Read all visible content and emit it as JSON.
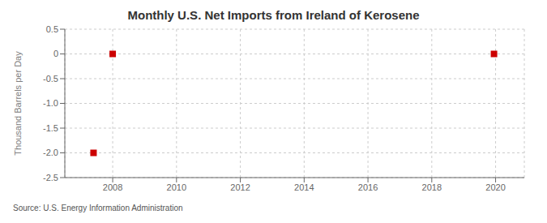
{
  "chart_data": {
    "type": "scatter",
    "title": "Monthly U.S. Net Imports from Ireland of Kerosene",
    "ylabel": "Thousand Barrels per Day",
    "source": "Source: U.S. Energy Information Administration",
    "x": [
      2007.4,
      2008.0,
      2019.95
    ],
    "values": [
      -2.0,
      0.0,
      0.0
    ],
    "color": "#CC0000",
    "marker": "square",
    "xlim": [
      2006.5,
      2020.9
    ],
    "xticks": [
      2008,
      2010,
      2012,
      2014,
      2016,
      2018,
      2020
    ],
    "ylim": [
      -2.5,
      0.5
    ],
    "yticks": [
      0.5,
      0,
      -0.5,
      {
        "value": -1.0,
        "label": "-1.0"
      },
      -1.5,
      {
        "value": -2.0,
        "label": "-2.0"
      },
      -2.5
    ],
    "grid": true
  }
}
